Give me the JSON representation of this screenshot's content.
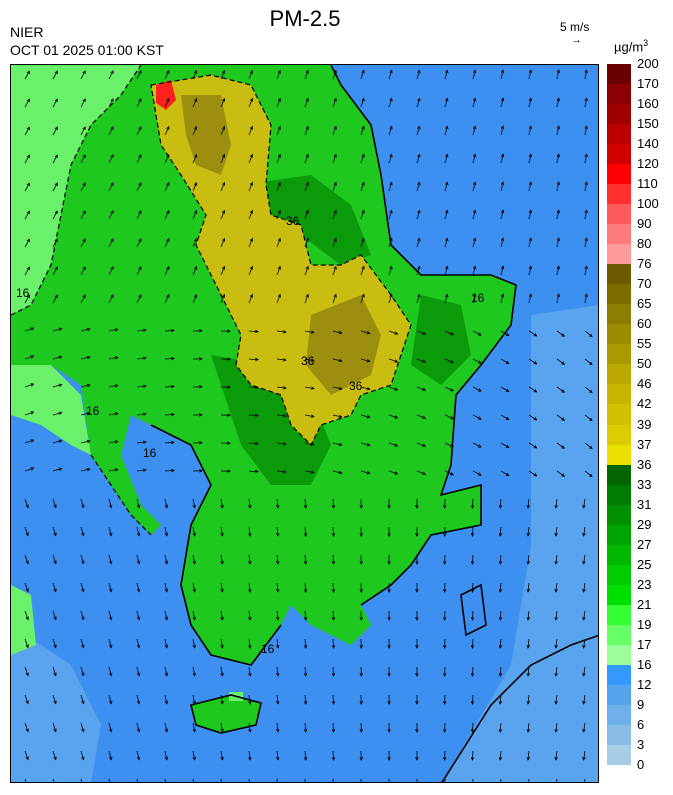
{
  "header": {
    "org": "NIER",
    "timestamp": "OCT 01 2025 01:00 KST",
    "title": "PM-2.5",
    "wind_scale": "5 m/s",
    "wind_arrow": "→",
    "unit_base": "µg/m",
    "unit_exp": "3"
  },
  "legend": {
    "labels": [
      "200",
      "170",
      "160",
      "150",
      "140",
      "120",
      "110",
      "100",
      "90",
      "80",
      "76",
      "70",
      "65",
      "60",
      "55",
      "50",
      "46",
      "42",
      "39",
      "37",
      "36",
      "33",
      "31",
      "29",
      "27",
      "25",
      "23",
      "21",
      "19",
      "17",
      "16",
      "12",
      "9",
      "6",
      "3",
      "0"
    ],
    "colors": [
      "#6b0000",
      "#8b0000",
      "#a00000",
      "#b80000",
      "#d00000",
      "#ff0000",
      "#ff3030",
      "#ff5a5a",
      "#ff7a7a",
      "#ff9a9a",
      "#6b5a00",
      "#7d6d00",
      "#8c7c00",
      "#9b8b00",
      "#aa9a00",
      "#b9a800",
      "#c7b500",
      "#d2c000",
      "#dccb00",
      "#e8e000",
      "#006600",
      "#007d00",
      "#009000",
      "#00a400",
      "#00b800",
      "#00cc00",
      "#00e000",
      "#33ff33",
      "#66ff66",
      "#99ff99",
      "#3399ff",
      "#55a5ee",
      "#6fb0ea",
      "#88bde8",
      "#a6cce6"
    ]
  },
  "map": {
    "contour_labels": [
      "16",
      "16",
      "16",
      "36",
      "36",
      "16",
      "16",
      "36"
    ],
    "colors": {
      "sea": "#3d8ff0",
      "sea_light": "#5aa3ee",
      "land_green": "#1ec81e",
      "land_dark": "#0a9a0a",
      "land_light": "#6af06a",
      "yellow": "#c9bd12",
      "olive": "#9c8f10",
      "hot": "#ff2020"
    }
  }
}
